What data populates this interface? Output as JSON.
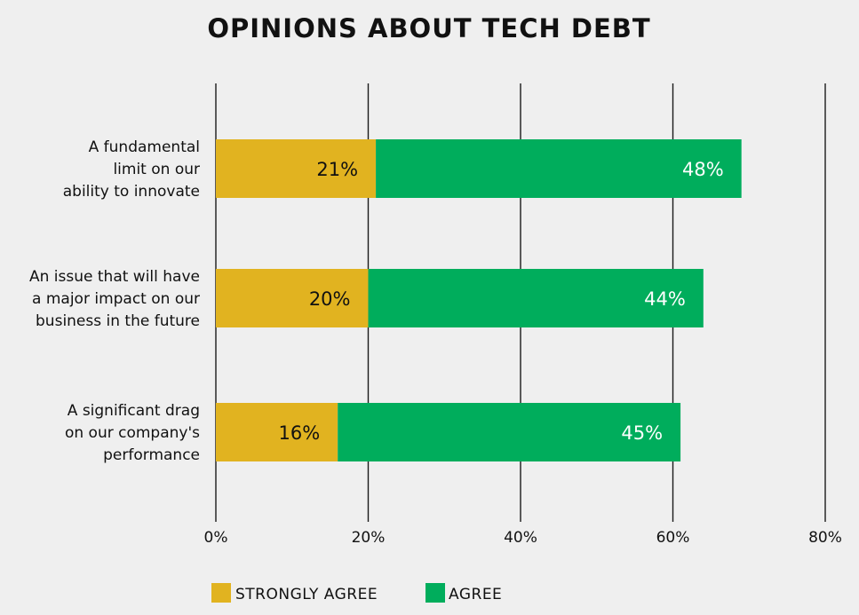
{
  "chart_data": {
    "type": "bar",
    "orientation": "horizontal",
    "stacked": true,
    "title": "OPINIONS ABOUT TECH DEBT",
    "categories": [
      [
        "A fundamental",
        "limit on our",
        "ability to innovate"
      ],
      [
        "An issue that will have",
        "a major impact on our",
        "business in the future"
      ],
      [
        "A significant drag",
        "on our company's",
        "performance"
      ]
    ],
    "series": [
      {
        "name": "STRONGLY AGREE",
        "values": [
          21,
          20,
          16
        ],
        "labels": [
          "21%",
          "20%",
          "16%"
        ],
        "color": "#e1b320",
        "label_color": "#111111"
      },
      {
        "name": "AGREE",
        "values": [
          48,
          44,
          45
        ],
        "labels": [
          "48%",
          "44%",
          "45%"
        ],
        "color": "#00ad5c",
        "label_color": "#ffffff"
      }
    ],
    "xlim": [
      0,
      80
    ],
    "ticks": [
      0,
      20,
      40,
      60,
      80
    ],
    "tick_labels": [
      "0%",
      "20%",
      "40%",
      "60%",
      "80%"
    ],
    "grid": true,
    "legend_position": "bottom-center"
  }
}
